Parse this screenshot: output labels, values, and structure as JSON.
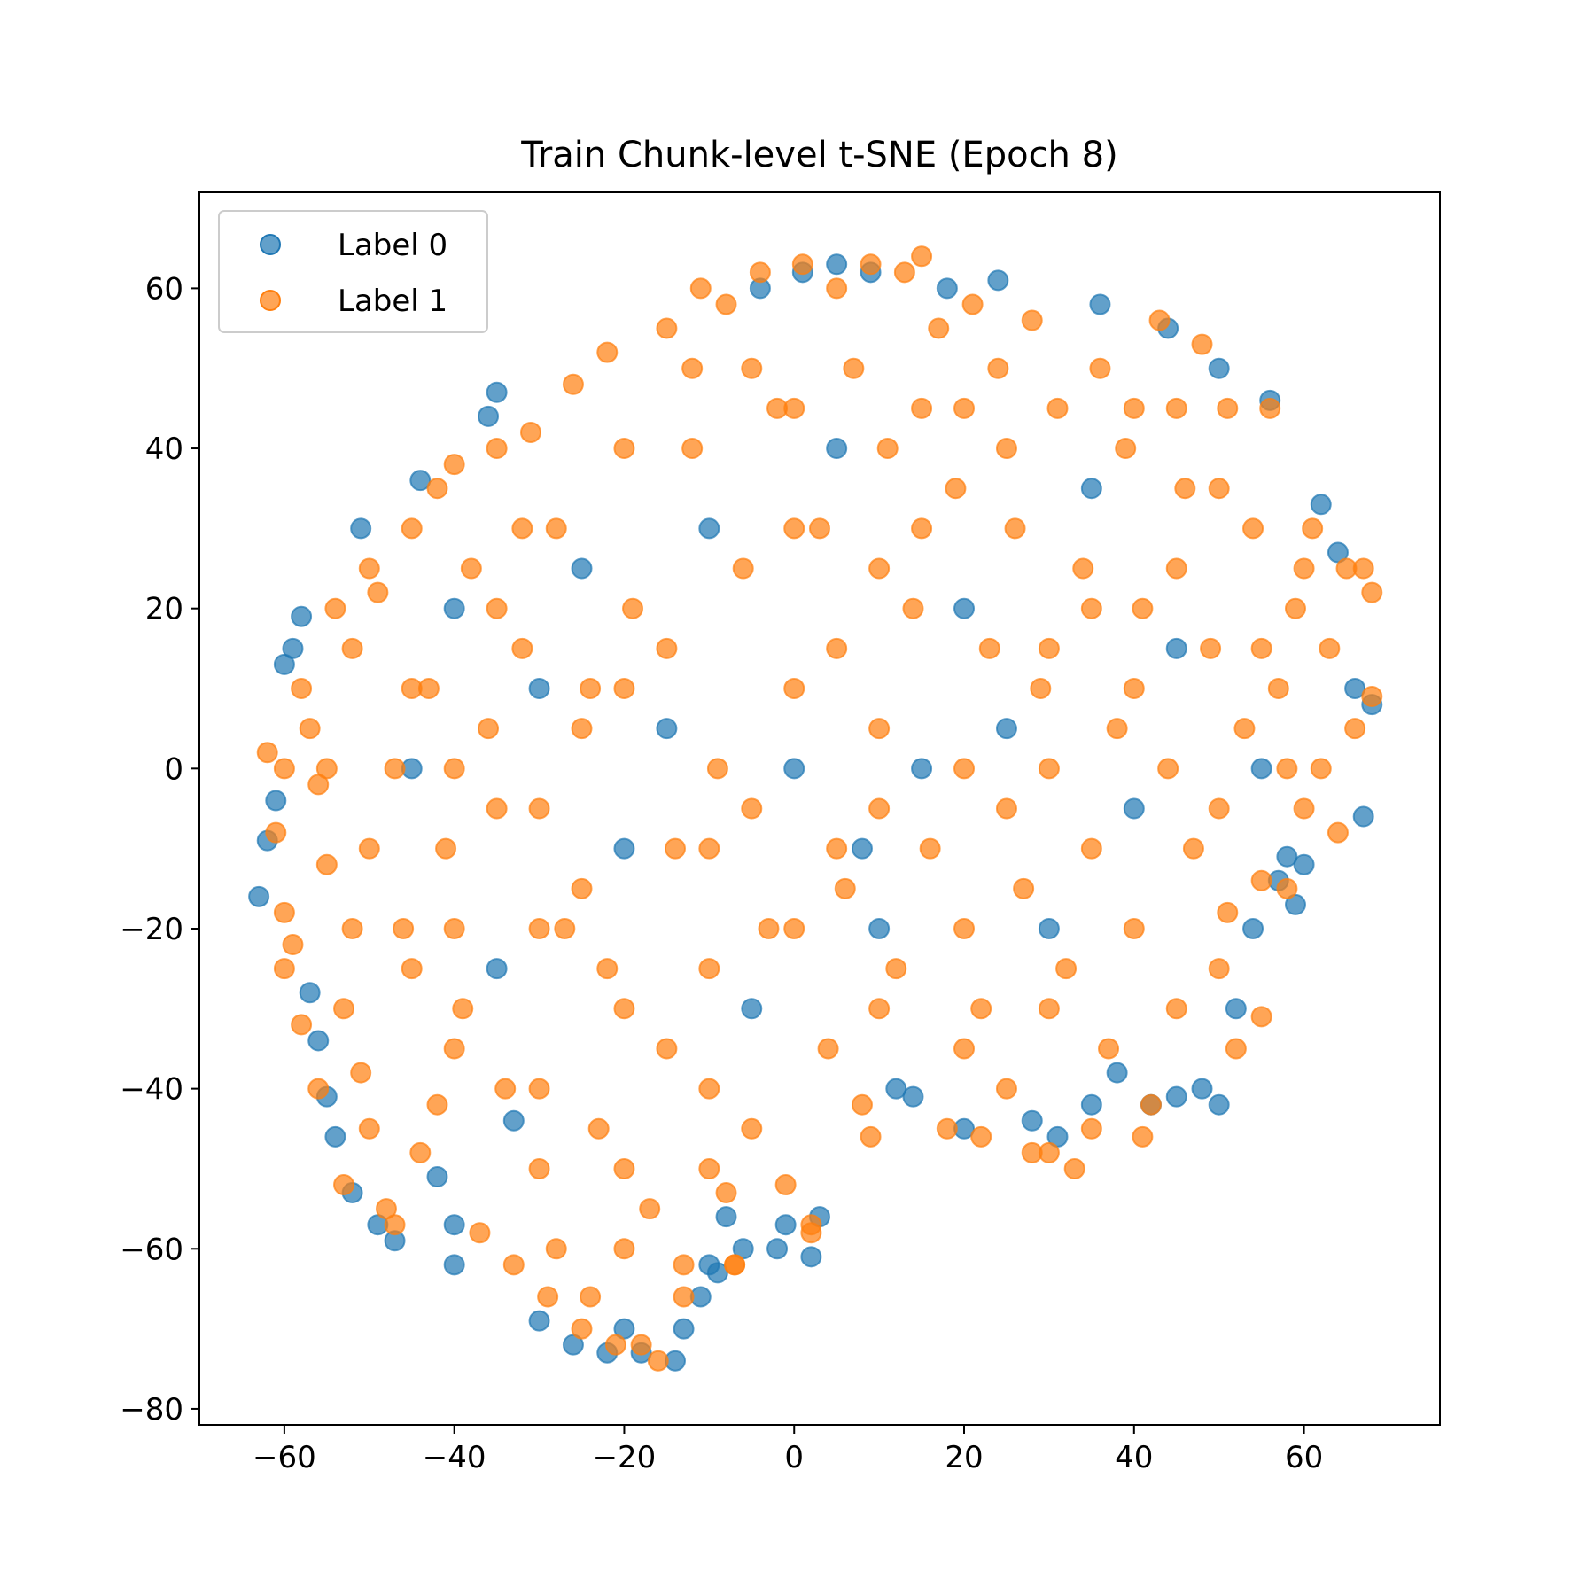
{
  "chart_data": {
    "type": "scatter",
    "title": "Train Chunk-level t-SNE (Epoch 8)",
    "xlabel": "",
    "ylabel": "",
    "xlim": [
      -70,
      76
    ],
    "ylim": [
      -82,
      72
    ],
    "x_ticks": [
      -60,
      -40,
      -20,
      0,
      20,
      40,
      60
    ],
    "y_ticks": [
      -80,
      -60,
      -40,
      -20,
      0,
      20,
      40,
      60
    ],
    "x_tick_labels": [
      "−60",
      "−40",
      "−20",
      "0",
      "20",
      "40",
      "60"
    ],
    "y_tick_labels": [
      "−80",
      "−60",
      "−40",
      "−20",
      "0",
      "20",
      "40",
      "60"
    ],
    "grid": false,
    "legend_position": "upper-left",
    "series": [
      {
        "name": "Label 0",
        "color": "#1f77b4",
        "alpha": 0.7,
        "points": [
          [
            -63,
            -16
          ],
          [
            -62,
            -9
          ],
          [
            -61,
            -4
          ],
          [
            -60,
            13
          ],
          [
            -59,
            15
          ],
          [
            -58,
            19
          ],
          [
            -57,
            -28
          ],
          [
            -56,
            -34
          ],
          [
            -55,
            -41
          ],
          [
            -54,
            -46
          ],
          [
            -52,
            -53
          ],
          [
            -51,
            30
          ],
          [
            -49,
            -57
          ],
          [
            -47,
            -59
          ],
          [
            -44,
            36
          ],
          [
            -42,
            -51
          ],
          [
            -40,
            -57
          ],
          [
            -40,
            -62
          ],
          [
            -36,
            44
          ],
          [
            -35,
            47
          ],
          [
            -33,
            -44
          ],
          [
            -30,
            -69
          ],
          [
            -26,
            -72
          ],
          [
            -22,
            -73
          ],
          [
            -20,
            -70
          ],
          [
            -18,
            -73
          ],
          [
            -14,
            -74
          ],
          [
            -13,
            -70
          ],
          [
            -11,
            -66
          ],
          [
            -10,
            -62
          ],
          [
            -9,
            -63
          ],
          [
            -8,
            -56
          ],
          [
            -6,
            -60
          ],
          [
            -4,
            60
          ],
          [
            -2,
            -60
          ],
          [
            -1,
            -57
          ],
          [
            1,
            62
          ],
          [
            2,
            -61
          ],
          [
            3,
            -56
          ],
          [
            5,
            63
          ],
          [
            9,
            62
          ],
          [
            12,
            -40
          ],
          [
            14,
            -41
          ],
          [
            18,
            60
          ],
          [
            20,
            -45
          ],
          [
            24,
            61
          ],
          [
            28,
            -44
          ],
          [
            31,
            -46
          ],
          [
            35,
            -42
          ],
          [
            38,
            -38
          ],
          [
            40,
            -5
          ],
          [
            42,
            -42
          ],
          [
            45,
            -41
          ],
          [
            48,
            -40
          ],
          [
            50,
            -42
          ],
          [
            52,
            -30
          ],
          [
            54,
            -20
          ],
          [
            57,
            -14
          ],
          [
            58,
            -11
          ],
          [
            59,
            -17
          ],
          [
            60,
            -12
          ],
          [
            62,
            33
          ],
          [
            64,
            27
          ],
          [
            66,
            10
          ],
          [
            67,
            -6
          ],
          [
            68,
            8
          ],
          [
            56,
            46
          ],
          [
            50,
            50
          ],
          [
            44,
            55
          ],
          [
            36,
            58
          ],
          [
            15,
            0
          ],
          [
            0,
            0
          ],
          [
            -20,
            -10
          ],
          [
            -30,
            10
          ],
          [
            -10,
            30
          ],
          [
            20,
            20
          ],
          [
            30,
            -20
          ],
          [
            -45,
            0
          ],
          [
            -5,
            -30
          ],
          [
            10,
            -20
          ],
          [
            25,
            5
          ],
          [
            45,
            15
          ],
          [
            -35,
            -25
          ],
          [
            5,
            40
          ],
          [
            -15,
            5
          ],
          [
            35,
            35
          ],
          [
            55,
            0
          ],
          [
            -25,
            25
          ],
          [
            8,
            -10
          ],
          [
            -40,
            20
          ]
        ]
      },
      {
        "name": "Label 1",
        "color": "#ff7f0e",
        "alpha": 0.7,
        "points": [
          [
            -62,
            2
          ],
          [
            -61,
            -8
          ],
          [
            -60,
            -18
          ],
          [
            -59,
            -22
          ],
          [
            -58,
            10
          ],
          [
            -57,
            5
          ],
          [
            -56,
            -2
          ],
          [
            -55,
            -12
          ],
          [
            -54,
            20
          ],
          [
            -53,
            -30
          ],
          [
            -52,
            15
          ],
          [
            -51,
            -38
          ],
          [
            -50,
            -45
          ],
          [
            -49,
            22
          ],
          [
            -48,
            -55
          ],
          [
            -47,
            0
          ],
          [
            -46,
            -20
          ],
          [
            -45,
            30
          ],
          [
            -44,
            -48
          ],
          [
            -43,
            10
          ],
          [
            -42,
            35
          ],
          [
            -41,
            -10
          ],
          [
            -40,
            38
          ],
          [
            -39,
            -30
          ],
          [
            -38,
            25
          ],
          [
            -37,
            -58
          ],
          [
            -36,
            5
          ],
          [
            -35,
            40
          ],
          [
            -34,
            -40
          ],
          [
            -33,
            -62
          ],
          [
            -32,
            15
          ],
          [
            -31,
            42
          ],
          [
            -30,
            -5
          ],
          [
            -29,
            -66
          ],
          [
            -28,
            30
          ],
          [
            -27,
            -20
          ],
          [
            -26,
            48
          ],
          [
            -25,
            -70
          ],
          [
            -24,
            10
          ],
          [
            -23,
            -45
          ],
          [
            -22,
            52
          ],
          [
            -21,
            -72
          ],
          [
            -20,
            -30
          ],
          [
            -19,
            20
          ],
          [
            -18,
            -72
          ],
          [
            -17,
            -55
          ],
          [
            -16,
            -74
          ],
          [
            -15,
            55
          ],
          [
            -14,
            -10
          ],
          [
            -13,
            -66
          ],
          [
            -12,
            40
          ],
          [
            -11,
            60
          ],
          [
            -10,
            -50
          ],
          [
            -9,
            0
          ],
          [
            -8,
            58
          ],
          [
            -7,
            -62
          ],
          [
            -6,
            25
          ],
          [
            -5,
            -45
          ],
          [
            -4,
            62
          ],
          [
            -3,
            -20
          ],
          [
            -2,
            45
          ],
          [
            -1,
            -52
          ],
          [
            0,
            10
          ],
          [
            1,
            63
          ],
          [
            2,
            -58
          ],
          [
            3,
            30
          ],
          [
            4,
            -35
          ],
          [
            5,
            60
          ],
          [
            6,
            -15
          ],
          [
            7,
            50
          ],
          [
            8,
            -42
          ],
          [
            9,
            63
          ],
          [
            10,
            5
          ],
          [
            11,
            40
          ],
          [
            12,
            -25
          ],
          [
            13,
            62
          ],
          [
            14,
            20
          ],
          [
            15,
            64
          ],
          [
            16,
            -10
          ],
          [
            17,
            55
          ],
          [
            18,
            -45
          ],
          [
            19,
            35
          ],
          [
            20,
            0
          ],
          [
            21,
            58
          ],
          [
            22,
            -30
          ],
          [
            23,
            15
          ],
          [
            24,
            50
          ],
          [
            25,
            -40
          ],
          [
            26,
            30
          ],
          [
            27,
            -15
          ],
          [
            28,
            56
          ],
          [
            29,
            10
          ],
          [
            30,
            -48
          ],
          [
            31,
            45
          ],
          [
            32,
            -25
          ],
          [
            33,
            -50
          ],
          [
            34,
            25
          ],
          [
            35,
            -45
          ],
          [
            36,
            50
          ],
          [
            37,
            -35
          ],
          [
            38,
            5
          ],
          [
            39,
            40
          ],
          [
            40,
            -20
          ],
          [
            41,
            20
          ],
          [
            42,
            -42
          ],
          [
            43,
            56
          ],
          [
            44,
            0
          ],
          [
            45,
            -30
          ],
          [
            46,
            35
          ],
          [
            47,
            -10
          ],
          [
            48,
            53
          ],
          [
            49,
            15
          ],
          [
            50,
            -25
          ],
          [
            51,
            45
          ],
          [
            52,
            -35
          ],
          [
            53,
            5
          ],
          [
            54,
            30
          ],
          [
            55,
            -31
          ],
          [
            56,
            45
          ],
          [
            57,
            10
          ],
          [
            58,
            -15
          ],
          [
            59,
            20
          ],
          [
            60,
            -5
          ],
          [
            61,
            30
          ],
          [
            62,
            0
          ],
          [
            63,
            15
          ],
          [
            64,
            -8
          ],
          [
            65,
            25
          ],
          [
            66,
            5
          ],
          [
            67,
            25
          ],
          [
            68,
            9
          ],
          [
            68,
            22
          ],
          [
            -53,
            -52
          ],
          [
            -47,
            -57
          ],
          [
            -28,
            -60
          ],
          [
            -24,
            -66
          ],
          [
            -20,
            -60
          ],
          [
            -13,
            -62
          ],
          [
            -8,
            -53
          ],
          [
            -7,
            -62
          ],
          [
            2,
            -57
          ],
          [
            9,
            -46
          ],
          [
            22,
            -46
          ],
          [
            28,
            -48
          ],
          [
            41,
            -46
          ],
          [
            51,
            -18
          ],
          [
            55,
            -14
          ],
          [
            -60,
            -25
          ],
          [
            -58,
            -32
          ],
          [
            -56,
            -40
          ],
          [
            -10,
            -40
          ],
          [
            0,
            -20
          ],
          [
            10,
            -30
          ],
          [
            20,
            -20
          ],
          [
            30,
            -30
          ],
          [
            -30,
            -40
          ],
          [
            -20,
            -50
          ],
          [
            -40,
            -20
          ],
          [
            0,
            30
          ],
          [
            -20,
            40
          ],
          [
            -45,
            10
          ],
          [
            -35,
            -5
          ],
          [
            -25,
            5
          ],
          [
            -15,
            15
          ],
          [
            -5,
            -5
          ],
          [
            5,
            15
          ],
          [
            15,
            30
          ],
          [
            25,
            40
          ],
          [
            35,
            20
          ],
          [
            45,
            25
          ],
          [
            55,
            15
          ],
          [
            60,
            25
          ],
          [
            -50,
            -10
          ],
          [
            -40,
            -35
          ],
          [
            -30,
            -50
          ],
          [
            -10,
            -25
          ],
          [
            10,
            -5
          ],
          [
            20,
            -35
          ],
          [
            30,
            0
          ],
          [
            40,
            10
          ],
          [
            50,
            -5
          ],
          [
            -55,
            0
          ],
          [
            -45,
            -25
          ],
          [
            -35,
            20
          ],
          [
            -25,
            -15
          ],
          [
            -15,
            -35
          ],
          [
            -5,
            50
          ],
          [
            5,
            -10
          ],
          [
            15,
            45
          ],
          [
            25,
            -5
          ],
          [
            35,
            -10
          ],
          [
            45,
            45
          ],
          [
            -60,
            0
          ],
          [
            -50,
            25
          ],
          [
            -40,
            0
          ],
          [
            -30,
            -20
          ],
          [
            -20,
            10
          ],
          [
            -10,
            -10
          ],
          [
            0,
            45
          ],
          [
            10,
            25
          ],
          [
            20,
            45
          ],
          [
            30,
            15
          ],
          [
            40,
            45
          ],
          [
            50,
            35
          ],
          [
            58,
            0
          ],
          [
            -52,
            -20
          ],
          [
            -42,
            -42
          ],
          [
            -32,
            30
          ],
          [
            -22,
            -25
          ],
          [
            -12,
            50
          ]
        ]
      }
    ]
  }
}
